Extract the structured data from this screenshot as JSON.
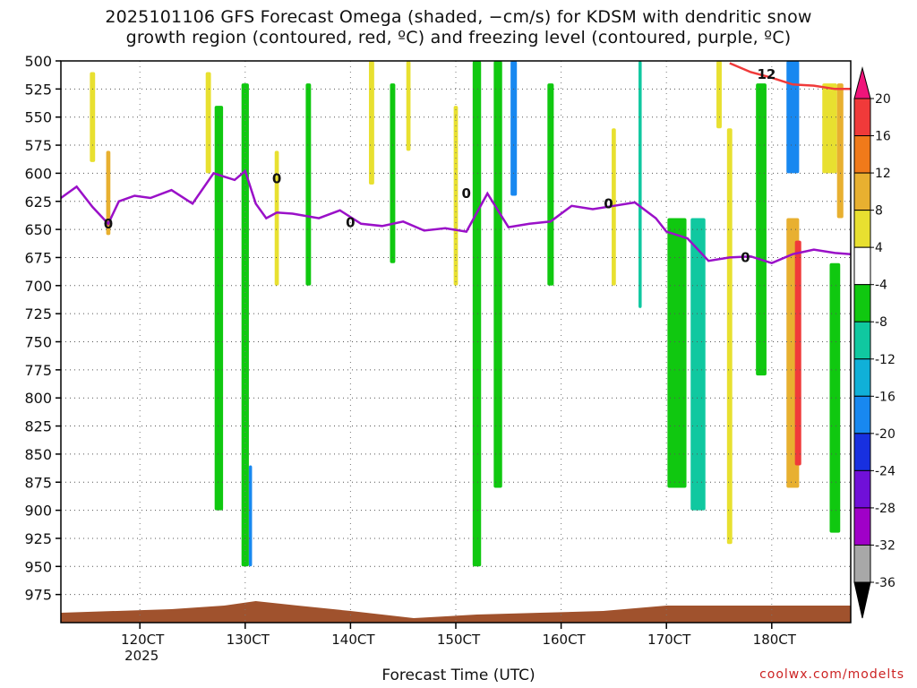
{
  "chart_data": {
    "type": "heatmap",
    "title": "2025101106 GFS Forecast Omega (shaded, −cm/s) for KDSM with dendritic snow",
    "subtitle": "growth region (contoured, red, ºC) and freezing level (contoured, purple, ºC)",
    "xlabel": "Forecast Time (UTC)",
    "ylabel": "",
    "x_ticks": [
      "120CT",
      "130CT",
      "140CT",
      "150CT",
      "160CT",
      "170CT",
      "180CT"
    ],
    "x_tick_sub": "2025",
    "y_ticks": [
      500,
      525,
      550,
      575,
      600,
      625,
      650,
      675,
      700,
      725,
      750,
      775,
      800,
      825,
      850,
      875,
      900,
      925,
      950,
      975
    ],
    "y_range": [
      500,
      1000
    ],
    "x_range_days": [
      11.25,
      18.75
    ],
    "grid": true,
    "colorbar": {
      "levels": [
        20,
        16,
        12,
        8,
        4,
        -4,
        -8,
        -12,
        -16,
        -20,
        -24,
        -28,
        -32,
        -36
      ],
      "colors": [
        "#f0147a",
        "#f03a3a",
        "#f07a1a",
        "#e8b030",
        "#e8e030",
        "#ffffff",
        "#10c810",
        "#10c8a0",
        "#10b0d8",
        "#1888f0",
        "#1830e0",
        "#7010d8",
        "#a000c8",
        "#a8a8a8",
        "#000000"
      ]
    },
    "freezing_level_label": "0",
    "dgz_label": "12",
    "series": [
      {
        "kind": "freezing-level",
        "color": "#9a10c8",
        "x": [
          11.25,
          11.4,
          11.55,
          11.7,
          11.8,
          11.95,
          12.1,
          12.3,
          12.5,
          12.7,
          12.9,
          13.0,
          13.1,
          13.2,
          13.3,
          13.45,
          13.7,
          13.9,
          14.1,
          14.3,
          14.5,
          14.7,
          14.9,
          15.1,
          15.3,
          15.5,
          15.7,
          15.9,
          16.1,
          16.3,
          16.5,
          16.7,
          16.9,
          17.0,
          17.2,
          17.4,
          17.6,
          17.8,
          18.0,
          18.2,
          18.4,
          18.6,
          18.75
        ],
        "y": [
          622,
          612,
          630,
          645,
          625,
          620,
          622,
          615,
          627,
          600,
          606,
          598,
          627,
          640,
          635,
          636,
          640,
          633,
          645,
          647,
          643,
          651,
          649,
          652,
          618,
          648,
          645,
          643,
          629,
          632,
          629,
          626,
          640,
          652,
          658,
          678,
          675,
          674,
          680,
          672,
          668,
          671,
          672
        ]
      },
      {
        "kind": "dgz-contour",
        "color": "#f03a3a",
        "x": [
          17.6,
          17.8,
          18.0,
          18.2,
          18.4,
          18.6,
          18.75
        ],
        "y": [
          502,
          510,
          515,
          521,
          522,
          525,
          525
        ]
      }
    ]
  },
  "credit": "coolwx.com/modelts"
}
